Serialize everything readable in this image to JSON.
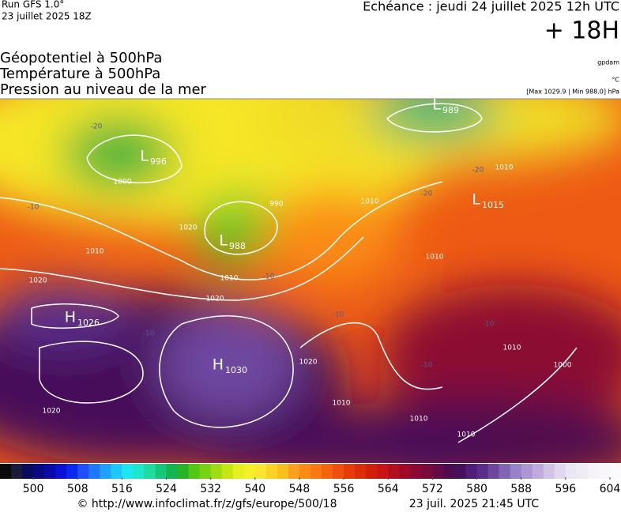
{
  "header": {
    "run": "Run GFS 1.0°",
    "run_date": "23 juillet 2025 18Z",
    "valid": "Echéance : jeudi 24 juillet 2025 12h UTC",
    "lead": "+ 18H",
    "fields": [
      "Géopotentiel à 500hPa",
      "Température à 500hPa",
      "Pression au niveau de la mer"
    ],
    "units": [
      "gpdam",
      "°C",
      "[Max 1029.9 | Min 988.0] hPa"
    ]
  },
  "map": {
    "centers": [
      {
        "type": "L",
        "value": "996"
      },
      {
        "type": "L",
        "value": "988"
      },
      {
        "type": "L",
        "value": "989"
      },
      {
        "type": "L",
        "value": "1015"
      },
      {
        "type": "H",
        "value": "1026"
      },
      {
        "type": "H",
        "value": "1030"
      }
    ],
    "isobar_labels": [
      "1020",
      "1000",
      "1010",
      "990",
      "1010",
      "1020",
      "1020",
      "1010",
      "1010",
      "1010",
      "1020",
      "1010",
      "1010",
      "1010",
      "1020",
      "1010",
      "1000"
    ],
    "isotherm_labels": [
      "-20",
      "-10",
      "-20",
      "-10",
      "-10",
      "-10",
      "-10",
      "-10",
      "-20"
    ]
  },
  "scale": {
    "lim": [
      494,
      606
    ],
    "ticks": [
      500,
      508,
      516,
      524,
      532,
      540,
      548,
      556,
      564,
      572,
      580,
      588,
      596,
      604
    ],
    "colors": [
      "#0a0a0a",
      "#1a1a3a",
      "#0b0b5e",
      "#0a0a80",
      "#0a0aa8",
      "#0a14d0",
      "#0a28f0",
      "#1e50ff",
      "#1e78ff",
      "#1ea0ff",
      "#1ec8ff",
      "#1ee6f0",
      "#1ee6c8",
      "#1edca0",
      "#14c878",
      "#14b450",
      "#28b428",
      "#50c814",
      "#78d214",
      "#a0dc14",
      "#c8e614",
      "#e6f01e",
      "#f5f028",
      "#fae632",
      "#fad228",
      "#fabe1e",
      "#faa01e",
      "#fa8c14",
      "#fa7814",
      "#f5640f",
      "#f0500f",
      "#e63c0a",
      "#dc2d0a",
      "#d21e0a",
      "#c81414",
      "#b40f1e",
      "#a00a28",
      "#8c0a32",
      "#780a3c",
      "#640a46",
      "#500a50",
      "#46105a",
      "#501e78",
      "#5a2d8c",
      "#6e46a0",
      "#8264b4",
      "#9682c8",
      "#aa96d2",
      "#beaadc",
      "#d2c3e6",
      "#e1d7ee",
      "#ebe6f3",
      "#f0ecf6",
      "#f5f2f9",
      "#f8f6fb",
      "#fbfafd"
    ]
  },
  "footer": {
    "source": "© http://www.infoclimat.fr/z/gfs/europe/500/18",
    "generated": "23 juil. 2025 21:45 UTC"
  }
}
